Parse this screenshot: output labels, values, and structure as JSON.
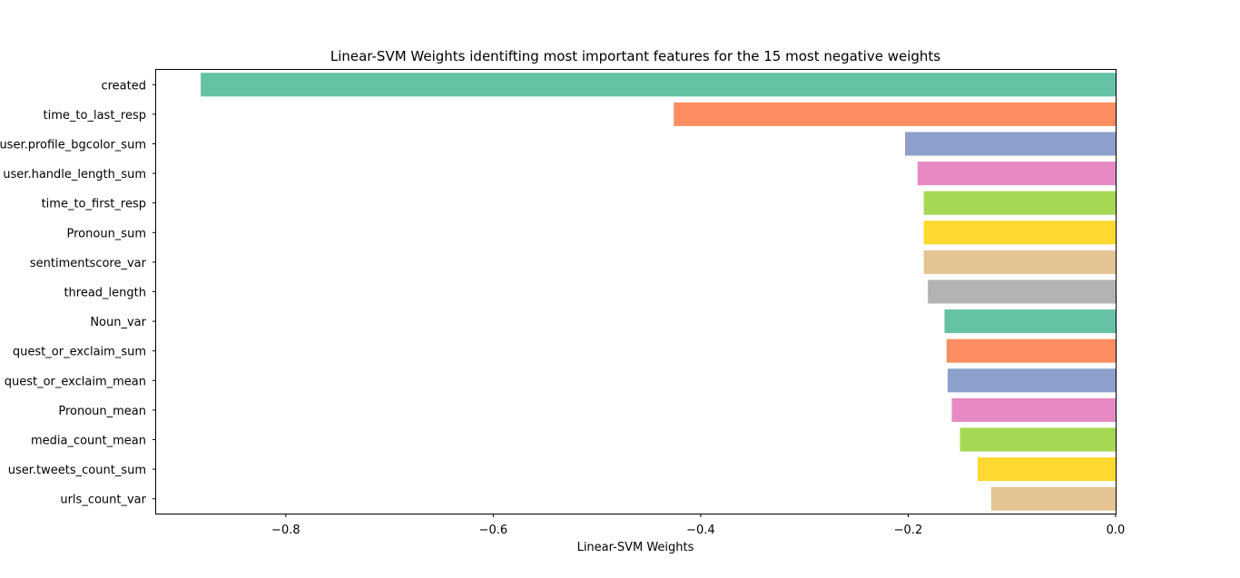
{
  "chart_data": {
    "type": "bar",
    "orientation": "horizontal",
    "title": "Linear-SVM Weights identifting most important features for the 15 most negative weights",
    "xlabel": "Linear-SVM Weights",
    "ylabel": "",
    "xlim": [
      -0.925,
      0.0
    ],
    "xticks": [
      -0.8,
      -0.6,
      -0.4,
      -0.2,
      0.0
    ],
    "xtick_labels": [
      "−0.8",
      "−0.6",
      "−0.4",
      "−0.2",
      "0.0"
    ],
    "grid": false,
    "legend": "none",
    "categories": [
      "created",
      "time_to_last_resp",
      "user.profile_bgcolor_sum",
      "user.handle_length_sum",
      "time_to_first_resp",
      "Pronoun_sum",
      "sentimentscore_var",
      "thread_length",
      "Noun_var",
      "quest_or_exclaim_sum",
      "quest_or_exclaim_mean",
      "Pronoun_mean",
      "media_count_mean",
      "user.tweets_count_sum",
      "urls_count_var"
    ],
    "values": [
      -0.882,
      -0.426,
      -0.203,
      -0.191,
      -0.185,
      -0.185,
      -0.185,
      -0.181,
      -0.165,
      -0.163,
      -0.162,
      -0.158,
      -0.15,
      -0.133,
      -0.12
    ],
    "colors": [
      "#66c2a5",
      "#fc8d62",
      "#8da0cb",
      "#e78ac3",
      "#a6d854",
      "#ffd92f",
      "#e5c494",
      "#b3b3b3",
      "#66c2a5",
      "#fc8d62",
      "#8da0cb",
      "#e78ac3",
      "#a6d854",
      "#ffd92f",
      "#e5c494"
    ]
  }
}
